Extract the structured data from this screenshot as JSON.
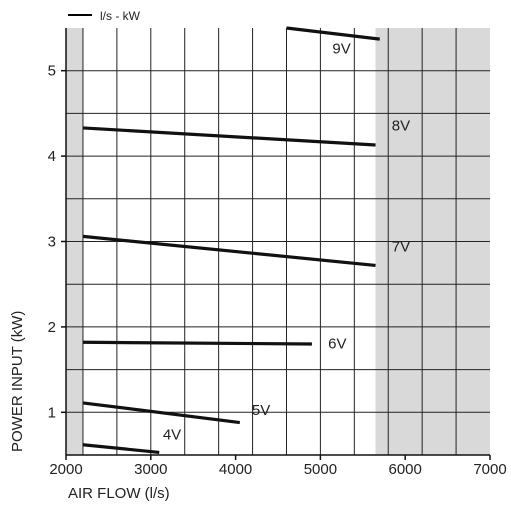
{
  "chart_data": {
    "type": "line",
    "legend": {
      "text": "l/s - kW",
      "placement": "top-left"
    },
    "xlabel": "AIR FLOW (l/s)",
    "ylabel": "POWER INPUT (kW)",
    "xlim": [
      2000,
      7000
    ],
    "ylim": [
      0.5,
      5.5
    ],
    "xticks": [
      "2000",
      "3000",
      "4000",
      "5000",
      "6000",
      "7000"
    ],
    "yticks": [
      "1",
      "2",
      "3",
      "4",
      "5"
    ],
    "grid": true,
    "shaded_regions": [
      {
        "from": 2000,
        "to": 2200,
        "color": "#d9d9d9"
      },
      {
        "from": 5650,
        "to": 7000,
        "color": "#d9d9d9"
      }
    ],
    "series": [
      {
        "name": "4V",
        "x": [
          2200,
          3100
        ],
        "y": [
          0.62,
          0.53
        ],
        "label_at": [
          3250,
          0.68
        ]
      },
      {
        "name": "5V",
        "x": [
          2200,
          4050
        ],
        "y": [
          1.11,
          0.88
        ],
        "label_at": [
          4300,
          0.97
        ]
      },
      {
        "name": "6V",
        "x": [
          2200,
          4900
        ],
        "y": [
          1.82,
          1.8
        ],
        "label_at": [
          5200,
          1.75
        ]
      },
      {
        "name": "7V",
        "x": [
          2200,
          5650
        ],
        "y": [
          3.06,
          2.72
        ],
        "label_at": [
          5950,
          2.88
        ]
      },
      {
        "name": "8V",
        "x": [
          2200,
          5650
        ],
        "y": [
          4.33,
          4.13
        ],
        "label_at": [
          5950,
          4.3
        ]
      },
      {
        "name": "9V",
        "x": [
          4600,
          5700
        ],
        "y": [
          5.5,
          5.37
        ],
        "label_at": [
          5250,
          5.2
        ]
      }
    ]
  }
}
